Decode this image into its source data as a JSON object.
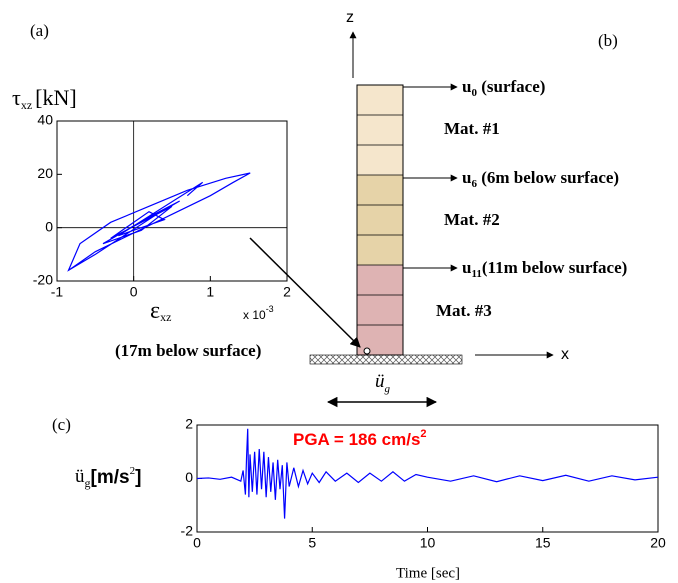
{
  "chart_data": [
    {
      "type": "line",
      "panel": "(a)",
      "y_label": {
        "symbol": "τ",
        "subscript": "xz",
        "unit": "[kN]"
      },
      "x_label": {
        "symbol": "ε",
        "subscript": "xz"
      },
      "multiplier": {
        "base": "x 10",
        "exponent": "-3"
      },
      "xlim": [
        -1,
        2
      ],
      "xticks": [
        -1,
        0,
        1,
        2
      ],
      "ylim": [
        -20,
        40
      ],
      "yticks": [
        -20,
        0,
        20,
        40
      ],
      "zero_lines": true,
      "series": [
        {
          "color": "#0000ff",
          "x": [
            -0.85,
            -0.5,
            0,
            0.5,
            1,
            1.3,
            1.52,
            1.2,
            0.7,
            0.2,
            -0.3,
            -0.7,
            -0.85,
            -0.5,
            0.3,
            0.6,
            0.2,
            -0.4,
            0.1,
            0.5,
            -0.3,
            0.2,
            0.4,
            -0.2,
            0.9,
            0.7
          ],
          "values": [
            -16,
            -9,
            -2,
            5,
            12,
            17,
            20.5,
            18.5,
            14,
            8,
            2,
            -6,
            -16,
            -10,
            5,
            10,
            4,
            -6,
            -1,
            8,
            -4,
            6,
            3,
            -3,
            17,
            12
          ]
        }
      ]
    },
    {
      "type": "line",
      "panel": "(c)",
      "y_label": {
        "symbol": "ü",
        "subscript": "g",
        "unit": "[m/s",
        "exponent": "2",
        "close": "]"
      },
      "x_label": "Time [sec]",
      "annotation": {
        "text": "PGA =  186 cm/s",
        "superscript": "2"
      },
      "xlim": [
        0,
        20
      ],
      "xticks": [
        0,
        5,
        10,
        15,
        20
      ],
      "ylim": [
        -2,
        2
      ],
      "yticks": [
        -2,
        0,
        2
      ],
      "zero_lines": false,
      "series": [
        {
          "color": "#0000ff",
          "x": [
            0,
            0.5,
            1,
            1.5,
            1.9,
            2.0,
            2.1,
            2.15,
            2.2,
            2.25,
            2.3,
            2.4,
            2.5,
            2.6,
            2.7,
            2.8,
            2.9,
            3.0,
            3.1,
            3.2,
            3.3,
            3.4,
            3.5,
            3.6,
            3.7,
            3.8,
            3.9,
            4.0,
            4.2,
            4.4,
            4.6,
            4.8,
            5.0,
            5.3,
            5.6,
            6.0,
            6.5,
            7.0,
            7.5,
            8.0,
            8.5,
            9.0,
            9.5,
            10,
            11,
            12,
            13,
            14,
            15,
            16,
            17,
            18,
            19,
            20
          ],
          "values": [
            0,
            0.02,
            -0.03,
            0.05,
            -0.1,
            0.3,
            -0.6,
            0.8,
            1.86,
            -0.7,
            0.9,
            -0.5,
            1.0,
            -0.6,
            1.1,
            -0.4,
            1.0,
            -0.7,
            0.8,
            -0.5,
            0.6,
            -0.8,
            0.7,
            -0.4,
            0.5,
            -1.5,
            0.6,
            -0.3,
            0.4,
            -0.3,
            0.3,
            -0.2,
            0.2,
            -0.15,
            0.25,
            -0.1,
            0.2,
            -0.15,
            0.2,
            -0.1,
            0.25,
            -0.1,
            0.15,
            0.05,
            -0.1,
            0.1,
            -0.12,
            0.1,
            -0.08,
            0.12,
            -0.1,
            0.1,
            -0.05,
            0.05
          ]
        }
      ]
    }
  ],
  "diagram": {
    "panel": "(b)",
    "axis_z": "z",
    "axis_x": "x",
    "outputs": [
      {
        "symbol": "u",
        "subscript": "0",
        "note": " (surface)"
      },
      {
        "symbol": "u",
        "subscript": "6",
        "note": " (6m below surface)"
      },
      {
        "symbol": "u",
        "subscript": "11",
        "note": "(11m below surface)"
      }
    ],
    "materials": [
      "Mat. #1",
      "Mat. #2",
      "Mat. #3"
    ],
    "base_label": "(17m below surface)",
    "input": {
      "symbol": "ü",
      "subscript": "g"
    }
  }
}
